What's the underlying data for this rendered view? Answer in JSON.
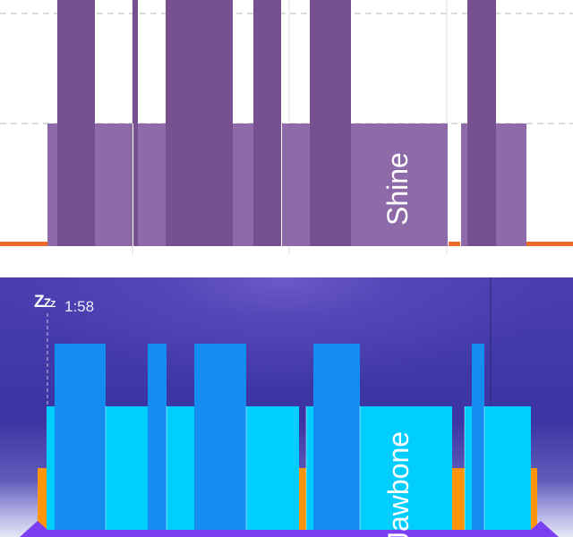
{
  "charts": {
    "shine": {
      "label": "Shine",
      "colors": {
        "awake": "#f06a2c",
        "light": "#8e6aa9",
        "deep": "#76508f",
        "grid": "#c8c8c8",
        "background": "#ffffff"
      }
    },
    "jawbone": {
      "label": "Jawbone",
      "sleep_icon": "zzz-icon",
      "sleep_time": "1:58",
      "colors": {
        "awake": "#ff9408",
        "light": "#00ceff",
        "deep": "#138ef0",
        "baseline": "#7b3ff2",
        "background": "#3f36a8"
      }
    }
  },
  "chart_data": [
    {
      "type": "bar",
      "label": "Shine",
      "levels": [
        "awake",
        "light",
        "deep"
      ],
      "segments": [
        {
          "start": 0,
          "end": 53,
          "level": "awake"
        },
        {
          "start": 53,
          "end": 64,
          "level": "light"
        },
        {
          "start": 64,
          "end": 106,
          "level": "deep"
        },
        {
          "start": 106,
          "end": 148,
          "level": "light"
        },
        {
          "start": 148,
          "end": 154,
          "level": "deep"
        },
        {
          "start": 154,
          "end": 185,
          "level": "light"
        },
        {
          "start": 185,
          "end": 260,
          "level": "deep"
        },
        {
          "start": 260,
          "end": 283,
          "level": "light"
        },
        {
          "start": 283,
          "end": 314,
          "level": "deep"
        },
        {
          "start": 314,
          "end": 346,
          "level": "light"
        },
        {
          "start": 346,
          "end": 392,
          "level": "deep"
        },
        {
          "start": 392,
          "end": 500,
          "level": "light"
        },
        {
          "start": 500,
          "end": 514,
          "level": "awake"
        },
        {
          "start": 514,
          "end": 522,
          "level": "light"
        },
        {
          "start": 522,
          "end": 554,
          "level": "deep"
        },
        {
          "start": 554,
          "end": 588,
          "level": "light"
        },
        {
          "start": 588,
          "end": 640,
          "level": "awake"
        }
      ]
    },
    {
      "type": "bar",
      "label": "Jawbone",
      "levels": [
        "awake",
        "light",
        "deep"
      ],
      "segments": [
        {
          "start": 42,
          "end": 52,
          "level": "awake"
        },
        {
          "start": 52,
          "end": 61,
          "level": "light"
        },
        {
          "start": 61,
          "end": 118,
          "level": "deep"
        },
        {
          "start": 118,
          "end": 165,
          "level": "light"
        },
        {
          "start": 165,
          "end": 186,
          "level": "deep"
        },
        {
          "start": 186,
          "end": 217,
          "level": "light"
        },
        {
          "start": 217,
          "end": 275,
          "level": "deep"
        },
        {
          "start": 275,
          "end": 334,
          "level": "light"
        },
        {
          "start": 334,
          "end": 342,
          "level": "awake"
        },
        {
          "start": 342,
          "end": 350,
          "level": "light"
        },
        {
          "start": 350,
          "end": 402,
          "level": "deep"
        },
        {
          "start": 402,
          "end": 505,
          "level": "light"
        },
        {
          "start": 505,
          "end": 519,
          "level": "awake"
        },
        {
          "start": 519,
          "end": 527,
          "level": "light"
        },
        {
          "start": 527,
          "end": 541,
          "level": "deep"
        },
        {
          "start": 541,
          "end": 593,
          "level": "light"
        },
        {
          "start": 593,
          "end": 600,
          "level": "awake"
        }
      ]
    }
  ]
}
